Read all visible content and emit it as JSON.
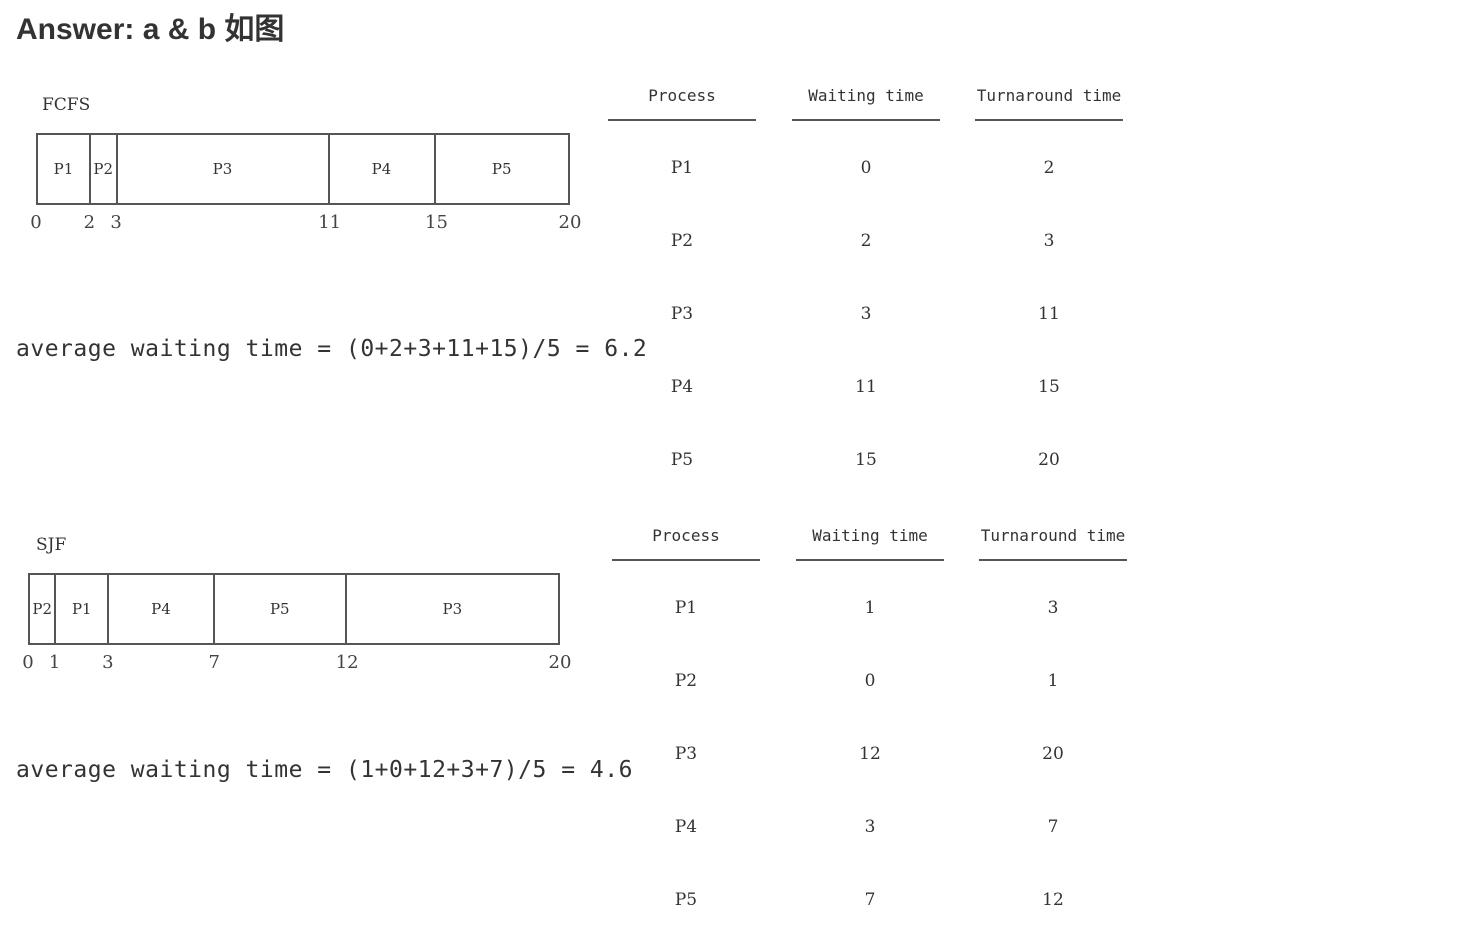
{
  "title": "Answer: a & b 如图",
  "fcfs": {
    "label": "FCFS",
    "segments": [
      {
        "name": "P1",
        "start": 0,
        "end": 2
      },
      {
        "name": "P2",
        "start": 2,
        "end": 3
      },
      {
        "name": "P3",
        "start": 3,
        "end": 11
      },
      {
        "name": "P4",
        "start": 11,
        "end": 15
      },
      {
        "name": "P5",
        "start": 15,
        "end": 20
      }
    ],
    "ticks": [
      "0",
      "2",
      "3",
      "11",
      "15",
      "20"
    ],
    "avg_text": "average waiting time = (0+2+3+11+15)/5 = 6.2",
    "table": {
      "headers": [
        "Process",
        "Waiting time",
        "Turnaround time"
      ],
      "rows": [
        [
          "P1",
          "0",
          "2"
        ],
        [
          "P2",
          "2",
          "3"
        ],
        [
          "P3",
          "3",
          "11"
        ],
        [
          "P4",
          "11",
          "15"
        ],
        [
          "P5",
          "15",
          "20"
        ]
      ]
    }
  },
  "sjf": {
    "label": "SJF",
    "segments": [
      {
        "name": "P2",
        "start": 0,
        "end": 1
      },
      {
        "name": "P1",
        "start": 1,
        "end": 3
      },
      {
        "name": "P4",
        "start": 3,
        "end": 7
      },
      {
        "name": "P5",
        "start": 7,
        "end": 12
      },
      {
        "name": "P3",
        "start": 12,
        "end": 20
      }
    ],
    "ticks": [
      "0",
      "1",
      "3",
      "7",
      "12",
      "20"
    ],
    "avg_text": "average waiting time = (1+0+12+3+7)/5 = 4.6",
    "table": {
      "headers": [
        "Process",
        "Waiting time",
        "Turnaround time"
      ],
      "rows": [
        [
          "P1",
          "1",
          "3"
        ],
        [
          "P2",
          "0",
          "1"
        ],
        [
          "P3",
          "12",
          "20"
        ],
        [
          "P4",
          "3",
          "7"
        ],
        [
          "P5",
          "7",
          "12"
        ]
      ]
    }
  }
}
